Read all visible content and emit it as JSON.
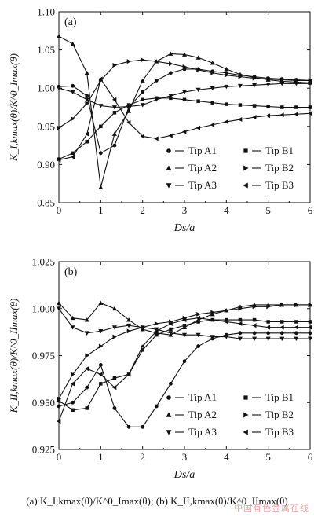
{
  "caption": "(a) K_I,kmax(θ)/K^0_Imax(θ); (b) K_II,kmax(θ)/K^0_IImax(θ)",
  "watermark": "中国有色金属在线",
  "chart_data": [
    {
      "type": "line",
      "panel_label": "(a)",
      "xlabel": "Ds/a",
      "ylabel": "K_I,kmax(θ)/K^0_Imax(θ)",
      "xlim": [
        0,
        6
      ],
      "ylim": [
        0.85,
        1.1
      ],
      "xticks": [
        0,
        1,
        2,
        3,
        4,
        5,
        6
      ],
      "yticks": [
        0.85,
        0.9,
        0.95,
        1.0,
        1.05,
        1.1
      ],
      "ytick_labels": [
        "0.85",
        "0.90",
        "0.95",
        "1.00",
        "1.05",
        "1.10"
      ],
      "grid": false,
      "legend_position": "lower-right",
      "series": [
        {
          "name": "Tip A1",
          "marker": "circle",
          "x": [
            0,
            0.33,
            0.67,
            1.0,
            1.33,
            1.67,
            2.0,
            2.33,
            2.67,
            3.0,
            3.33,
            3.67,
            4.0,
            4.33,
            4.67,
            5.0,
            5.33,
            5.67,
            6.0
          ],
          "y": [
            1.002,
            1.003,
            0.99,
            0.915,
            0.925,
            0.975,
            0.995,
            1.01,
            1.02,
            1.025,
            1.025,
            1.022,
            1.02,
            1.017,
            1.015,
            1.013,
            1.012,
            1.011,
            1.01
          ]
        },
        {
          "name": "Tip A2",
          "marker": "triangle-up",
          "x": [
            0,
            0.33,
            0.67,
            1.0,
            1.33,
            1.67,
            2.0,
            2.33,
            2.67,
            3.0,
            3.33,
            3.67,
            4.0,
            4.33,
            4.67,
            5.0,
            5.33,
            5.67,
            6.0
          ],
          "y": [
            1.068,
            1.058,
            1.02,
            0.87,
            0.94,
            0.97,
            1.01,
            1.035,
            1.045,
            1.044,
            1.04,
            1.033,
            1.025,
            1.018,
            1.014,
            1.011,
            1.009,
            1.008,
            1.007
          ]
        },
        {
          "name": "Tip A3",
          "marker": "triangle-down",
          "x": [
            0,
            0.33,
            0.67,
            1.0,
            1.33,
            1.67,
            2.0,
            2.33,
            2.67,
            3.0,
            3.33,
            3.67,
            4.0,
            4.33,
            4.67,
            5.0,
            5.33,
            5.67,
            6.0
          ],
          "y": [
            1.0,
            0.995,
            0.985,
            0.977,
            0.975,
            0.976,
            0.978,
            0.985,
            0.99,
            0.995,
            0.998,
            1.0,
            1.002,
            1.003,
            1.004,
            1.005,
            1.006,
            1.006,
            1.006
          ]
        },
        {
          "name": "Tip B1",
          "marker": "square",
          "x": [
            0,
            0.33,
            0.67,
            1.0,
            1.33,
            1.67,
            2.0,
            2.33,
            2.67,
            3.0,
            3.33,
            3.67,
            4.0,
            4.33,
            4.67,
            5.0,
            5.33,
            5.67,
            6.0
          ],
          "y": [
            0.907,
            0.915,
            0.93,
            0.95,
            0.968,
            0.978,
            0.985,
            0.987,
            0.987,
            0.985,
            0.983,
            0.981,
            0.979,
            0.978,
            0.977,
            0.976,
            0.975,
            0.975,
            0.975
          ]
        },
        {
          "name": "Tip B2",
          "marker": "triangle-right",
          "x": [
            0,
            0.33,
            0.67,
            1.0,
            1.33,
            1.67,
            2.0,
            2.33,
            2.67,
            3.0,
            3.33,
            3.67,
            4.0,
            4.33,
            4.67,
            5.0,
            5.33,
            5.67,
            6.0
          ],
          "y": [
            0.948,
            0.96,
            0.98,
            1.01,
            1.03,
            1.035,
            1.037,
            1.035,
            1.032,
            1.028,
            1.024,
            1.02,
            1.017,
            1.015,
            1.013,
            1.012,
            1.011,
            1.01,
            1.01
          ]
        },
        {
          "name": "Tip B3",
          "marker": "triangle-left",
          "x": [
            0,
            0.33,
            0.67,
            1.0,
            1.33,
            1.67,
            2.0,
            2.33,
            2.67,
            3.0,
            3.33,
            3.67,
            4.0,
            4.33,
            4.67,
            5.0,
            5.33,
            5.67,
            6.0
          ],
          "y": [
            0.906,
            0.91,
            0.94,
            1.012,
            0.985,
            0.955,
            0.937,
            0.934,
            0.938,
            0.943,
            0.948,
            0.952,
            0.956,
            0.959,
            0.962,
            0.964,
            0.965,
            0.966,
            0.967
          ]
        }
      ]
    },
    {
      "type": "line",
      "panel_label": "(b)",
      "xlabel": "Ds/a",
      "ylabel": "K_II,kmax(θ)/K^0_IImax(θ)",
      "xlim": [
        0,
        6
      ],
      "ylim": [
        0.925,
        1.025
      ],
      "xticks": [
        0,
        1,
        2,
        3,
        4,
        5,
        6
      ],
      "yticks": [
        0.925,
        0.95,
        0.975,
        1.0,
        1.025
      ],
      "ytick_labels": [
        "0.925",
        "0.950",
        "0.975",
        "1.000",
        "1.025"
      ],
      "grid": false,
      "legend_position": "lower-right",
      "series": [
        {
          "name": "Tip A1",
          "marker": "circle",
          "x": [
            0,
            0.33,
            0.67,
            1.0,
            1.33,
            1.67,
            2.0,
            2.33,
            2.67,
            3.0,
            3.33,
            3.67,
            4.0,
            4.33,
            4.67,
            5.0,
            5.33,
            5.67,
            6.0
          ],
          "y": [
            0.948,
            0.95,
            0.958,
            0.97,
            0.947,
            0.937,
            0.937,
            0.948,
            0.96,
            0.972,
            0.98,
            0.984,
            0.986,
            0.987,
            0.987,
            0.987,
            0.987,
            0.987,
            0.987
          ]
        },
        {
          "name": "Tip A2",
          "marker": "triangle-up",
          "x": [
            0,
            0.33,
            0.67,
            1.0,
            1.33,
            1.67,
            2.0,
            2.33,
            2.67,
            3.0,
            3.33,
            3.67,
            4.0,
            4.33,
            4.67,
            5.0,
            5.33,
            5.67,
            6.0
          ],
          "y": [
            1.003,
            0.995,
            0.994,
            1.003,
            1.0,
            0.994,
            0.989,
            0.987,
            0.986,
            0.99,
            0.994,
            0.997,
            0.999,
            1.001,
            1.002,
            1.002,
            1.002,
            1.002,
            1.002
          ]
        },
        {
          "name": "Tip A3",
          "marker": "triangle-down",
          "x": [
            0,
            0.33,
            0.67,
            1.0,
            1.33,
            1.67,
            2.0,
            2.33,
            2.67,
            3.0,
            3.33,
            3.67,
            4.0,
            4.33,
            4.67,
            5.0,
            5.33,
            5.67,
            6.0
          ],
          "y": [
            1.0,
            0.99,
            0.987,
            0.988,
            0.99,
            0.991,
            0.99,
            0.989,
            0.987,
            0.986,
            0.986,
            0.985,
            0.985,
            0.984,
            0.984,
            0.984,
            0.984,
            0.984,
            0.984
          ]
        },
        {
          "name": "Tip B1",
          "marker": "square",
          "x": [
            0,
            0.33,
            0.67,
            1.0,
            1.33,
            1.67,
            2.0,
            2.33,
            2.67,
            3.0,
            3.33,
            3.67,
            4.0,
            4.33,
            4.67,
            5.0,
            5.33,
            5.67,
            6.0
          ],
          "y": [
            0.951,
            0.946,
            0.947,
            0.96,
            0.963,
            0.965,
            0.978,
            0.986,
            0.989,
            0.991,
            0.993,
            0.994,
            0.994,
            0.994,
            0.994,
            0.993,
            0.993,
            0.993,
            0.993
          ]
        },
        {
          "name": "Tip B2",
          "marker": "triangle-right",
          "x": [
            0,
            0.33,
            0.67,
            1.0,
            1.33,
            1.67,
            2.0,
            2.33,
            2.67,
            3.0,
            3.33,
            3.67,
            4.0,
            4.33,
            4.67,
            5.0,
            5.33,
            5.67,
            6.0
          ],
          "y": [
            0.952,
            0.965,
            0.975,
            0.98,
            0.985,
            0.988,
            0.99,
            0.992,
            0.993,
            0.995,
            0.997,
            0.998,
            0.999,
            1.0,
            1.001,
            1.001,
            1.002,
            1.002,
            1.002
          ]
        },
        {
          "name": "Tip B3",
          "marker": "triangle-left",
          "x": [
            0,
            0.33,
            0.67,
            1.0,
            1.33,
            1.67,
            2.0,
            2.33,
            2.67,
            3.0,
            3.33,
            3.67,
            4.0,
            4.33,
            4.67,
            5.0,
            5.33,
            5.67,
            6.0
          ],
          "y": [
            0.94,
            0.96,
            0.968,
            0.965,
            0.958,
            0.965,
            0.98,
            0.988,
            0.992,
            0.994,
            0.995,
            0.994,
            0.993,
            0.992,
            0.991,
            0.99,
            0.99,
            0.99,
            0.99
          ]
        }
      ]
    }
  ]
}
